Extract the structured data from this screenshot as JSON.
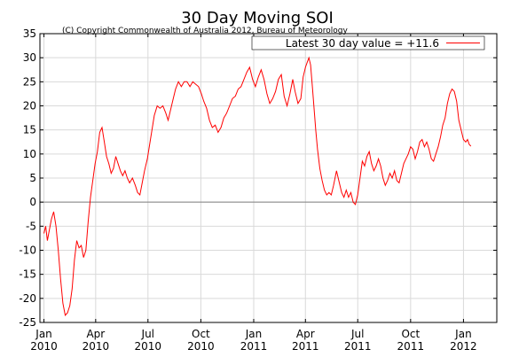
{
  "chart_data": {
    "type": "line",
    "title": "30 Day Moving SOI",
    "subtitle": "(C) Copyright Commonwealth of Australia 2012, Bureau of Meteorology",
    "xlabel": "",
    "ylabel": "",
    "ylim": [
      -25,
      35
    ],
    "yticks": [
      -25,
      -20,
      -15,
      -10,
      -5,
      0,
      5,
      10,
      15,
      20,
      25,
      30,
      35
    ],
    "xlim": [
      "2009-12-25",
      "2012-02-28"
    ],
    "xticks": [
      {
        "date": "2010-01-01",
        "label": [
          "Jan",
          "2010"
        ]
      },
      {
        "date": "2010-04-01",
        "label": [
          "Apr",
          "2010"
        ]
      },
      {
        "date": "2010-07-01",
        "label": [
          "Jul",
          "2010"
        ]
      },
      {
        "date": "2010-10-01",
        "label": [
          "Oct",
          "2010"
        ]
      },
      {
        "date": "2011-01-01",
        "label": [
          "Jan",
          "2011"
        ]
      },
      {
        "date": "2011-04-01",
        "label": [
          "Apr",
          "2011"
        ]
      },
      {
        "date": "2011-07-01",
        "label": [
          "Jul",
          "2011"
        ]
      },
      {
        "date": "2011-10-01",
        "label": [
          "Oct",
          "2011"
        ]
      },
      {
        "date": "2012-01-01",
        "label": [
          "Jan",
          "2012"
        ]
      }
    ],
    "grid": true,
    "legend_position": "top-right",
    "series": [
      {
        "name": "Latest 30 day value = +11.6",
        "color": "#ff0000",
        "points": [
          [
            "2010-01-01",
            -6.5
          ],
          [
            "2010-01-04",
            -5.0
          ],
          [
            "2010-01-07",
            -8.0
          ],
          [
            "2010-01-10",
            -6.0
          ],
          [
            "2010-01-14",
            -3.5
          ],
          [
            "2010-01-18",
            -2.0
          ],
          [
            "2010-01-22",
            -5.0
          ],
          [
            "2010-01-26",
            -10.0
          ],
          [
            "2010-01-30",
            -16.0
          ],
          [
            "2010-02-03",
            -21.0
          ],
          [
            "2010-02-07",
            -23.5
          ],
          [
            "2010-02-11",
            -23.0
          ],
          [
            "2010-02-15",
            -21.5
          ],
          [
            "2010-02-19",
            -18.0
          ],
          [
            "2010-02-23",
            -12.0
          ],
          [
            "2010-02-27",
            -8.0
          ],
          [
            "2010-03-03",
            -9.5
          ],
          [
            "2010-03-07",
            -9.0
          ],
          [
            "2010-03-11",
            -11.5
          ],
          [
            "2010-03-15",
            -10.0
          ],
          [
            "2010-03-19",
            -4.0
          ],
          [
            "2010-03-23",
            1.0
          ],
          [
            "2010-03-27",
            4.5
          ],
          [
            "2010-03-31",
            8.0
          ],
          [
            "2010-04-04",
            10.5
          ],
          [
            "2010-04-08",
            14.5
          ],
          [
            "2010-04-12",
            15.5
          ],
          [
            "2010-04-16",
            12.5
          ],
          [
            "2010-04-20",
            9.5
          ],
          [
            "2010-04-24",
            8.0
          ],
          [
            "2010-04-28",
            6.0
          ],
          [
            "2010-05-02",
            7.0
          ],
          [
            "2010-05-06",
            9.5
          ],
          [
            "2010-05-10",
            8.0
          ],
          [
            "2010-05-14",
            6.5
          ],
          [
            "2010-05-18",
            5.5
          ],
          [
            "2010-05-22",
            6.5
          ],
          [
            "2010-05-26",
            5.0
          ],
          [
            "2010-05-30",
            4.0
          ],
          [
            "2010-06-04",
            5.0
          ],
          [
            "2010-06-09",
            3.5
          ],
          [
            "2010-06-13",
            2.0
          ],
          [
            "2010-06-17",
            1.5
          ],
          [
            "2010-06-21",
            4.0
          ],
          [
            "2010-06-25",
            6.5
          ],
          [
            "2010-06-30",
            9.0
          ],
          [
            "2010-07-04",
            12.0
          ],
          [
            "2010-07-08",
            15.0
          ],
          [
            "2010-07-12",
            18.0
          ],
          [
            "2010-07-17",
            20.0
          ],
          [
            "2010-07-22",
            19.5
          ],
          [
            "2010-07-27",
            20.0
          ],
          [
            "2010-08-01",
            18.5
          ],
          [
            "2010-08-05",
            17.0
          ],
          [
            "2010-08-10",
            19.5
          ],
          [
            "2010-08-14",
            21.5
          ],
          [
            "2010-08-18",
            23.5
          ],
          [
            "2010-08-23",
            25.0
          ],
          [
            "2010-08-28",
            24.0
          ],
          [
            "2010-09-02",
            25.0
          ],
          [
            "2010-09-07",
            25.0
          ],
          [
            "2010-09-12",
            24.0
          ],
          [
            "2010-09-17",
            25.0
          ],
          [
            "2010-09-22",
            24.5
          ],
          [
            "2010-09-27",
            24.0
          ],
          [
            "2010-10-02",
            22.5
          ],
          [
            "2010-10-06",
            21.0
          ],
          [
            "2010-10-11",
            19.5
          ],
          [
            "2010-10-16",
            17.0
          ],
          [
            "2010-10-21",
            15.5
          ],
          [
            "2010-10-26",
            16.0
          ],
          [
            "2010-10-31",
            14.5
          ],
          [
            "2010-11-05",
            15.5
          ],
          [
            "2010-11-10",
            17.5
          ],
          [
            "2010-11-15",
            18.5
          ],
          [
            "2010-11-20",
            20.0
          ],
          [
            "2010-11-25",
            21.5
          ],
          [
            "2010-11-30",
            22.0
          ],
          [
            "2010-12-05",
            23.5
          ],
          [
            "2010-12-10",
            24.0
          ],
          [
            "2010-12-15",
            25.5
          ],
          [
            "2010-12-20",
            27.0
          ],
          [
            "2010-12-25",
            28.0
          ],
          [
            "2010-12-30",
            25.5
          ],
          [
            "2011-01-04",
            24.0
          ],
          [
            "2011-01-09",
            26.0
          ],
          [
            "2011-01-14",
            27.5
          ],
          [
            "2011-01-19",
            25.5
          ],
          [
            "2011-01-24",
            22.5
          ],
          [
            "2011-01-29",
            20.5
          ],
          [
            "2011-02-03",
            21.5
          ],
          [
            "2011-02-08",
            23.0
          ],
          [
            "2011-02-13",
            25.5
          ],
          [
            "2011-02-18",
            26.5
          ],
          [
            "2011-02-23",
            22.0
          ],
          [
            "2011-02-28",
            20.0
          ],
          [
            "2011-03-05",
            22.5
          ],
          [
            "2011-03-10",
            25.5
          ],
          [
            "2011-03-14",
            23.0
          ],
          [
            "2011-03-19",
            20.5
          ],
          [
            "2011-03-24",
            21.5
          ],
          [
            "2011-03-28",
            26.0
          ],
          [
            "2011-04-01",
            28.0
          ],
          [
            "2011-04-04",
            29.0
          ],
          [
            "2011-04-07",
            30.0
          ],
          [
            "2011-04-10",
            28.5
          ],
          [
            "2011-04-13",
            24.0
          ],
          [
            "2011-04-16",
            19.5
          ],
          [
            "2011-04-19",
            15.0
          ],
          [
            "2011-04-22",
            11.0
          ],
          [
            "2011-04-26",
            7.0
          ],
          [
            "2011-04-30",
            4.5
          ],
          [
            "2011-05-04",
            2.5
          ],
          [
            "2011-05-08",
            1.5
          ],
          [
            "2011-05-12",
            2.0
          ],
          [
            "2011-05-16",
            1.5
          ],
          [
            "2011-05-20",
            3.5
          ],
          [
            "2011-05-25",
            6.5
          ],
          [
            "2011-05-30",
            4.0
          ],
          [
            "2011-06-03",
            2.0
          ],
          [
            "2011-06-07",
            1.0
          ],
          [
            "2011-06-11",
            2.5
          ],
          [
            "2011-06-15",
            1.0
          ],
          [
            "2011-06-19",
            2.0
          ],
          [
            "2011-06-23",
            0.0
          ],
          [
            "2011-06-27",
            -0.5
          ],
          [
            "2011-07-01",
            1.5
          ],
          [
            "2011-07-05",
            5.0
          ],
          [
            "2011-07-09",
            8.5
          ],
          [
            "2011-07-13",
            7.5
          ],
          [
            "2011-07-17",
            9.5
          ],
          [
            "2011-07-21",
            10.5
          ],
          [
            "2011-07-25",
            8.0
          ],
          [
            "2011-07-29",
            6.5
          ],
          [
            "2011-08-02",
            7.5
          ],
          [
            "2011-08-06",
            9.0
          ],
          [
            "2011-08-10",
            7.5
          ],
          [
            "2011-08-14",
            5.0
          ],
          [
            "2011-08-18",
            3.5
          ],
          [
            "2011-08-22",
            4.5
          ],
          [
            "2011-08-26",
            6.0
          ],
          [
            "2011-08-30",
            5.0
          ],
          [
            "2011-09-03",
            6.5
          ],
          [
            "2011-09-07",
            4.5
          ],
          [
            "2011-09-11",
            4.0
          ],
          [
            "2011-09-15",
            6.0
          ],
          [
            "2011-09-19",
            8.0
          ],
          [
            "2011-09-23",
            9.0
          ],
          [
            "2011-09-27",
            10.0
          ],
          [
            "2011-10-01",
            11.5
          ],
          [
            "2011-10-05",
            11.0
          ],
          [
            "2011-10-09",
            9.0
          ],
          [
            "2011-10-13",
            10.5
          ],
          [
            "2011-10-17",
            12.5
          ],
          [
            "2011-10-21",
            13.0
          ],
          [
            "2011-10-25",
            11.5
          ],
          [
            "2011-10-29",
            12.5
          ],
          [
            "2011-11-02",
            11.0
          ],
          [
            "2011-11-06",
            9.0
          ],
          [
            "2011-11-10",
            8.5
          ],
          [
            "2011-11-14",
            10.0
          ],
          [
            "2011-11-18",
            11.5
          ],
          [
            "2011-11-22",
            13.5
          ],
          [
            "2011-11-26",
            16.0
          ],
          [
            "2011-11-30",
            17.5
          ],
          [
            "2011-12-04",
            20.5
          ],
          [
            "2011-12-08",
            22.5
          ],
          [
            "2011-12-12",
            23.5
          ],
          [
            "2011-12-16",
            23.0
          ],
          [
            "2011-12-20",
            21.0
          ],
          [
            "2011-12-24",
            17.0
          ],
          [
            "2011-12-28",
            15.0
          ],
          [
            "2012-01-01",
            13.0
          ],
          [
            "2012-01-05",
            12.5
          ],
          [
            "2012-01-08",
            13.0
          ],
          [
            "2012-01-11",
            12.0
          ],
          [
            "2012-01-14",
            11.6
          ]
        ]
      }
    ]
  }
}
